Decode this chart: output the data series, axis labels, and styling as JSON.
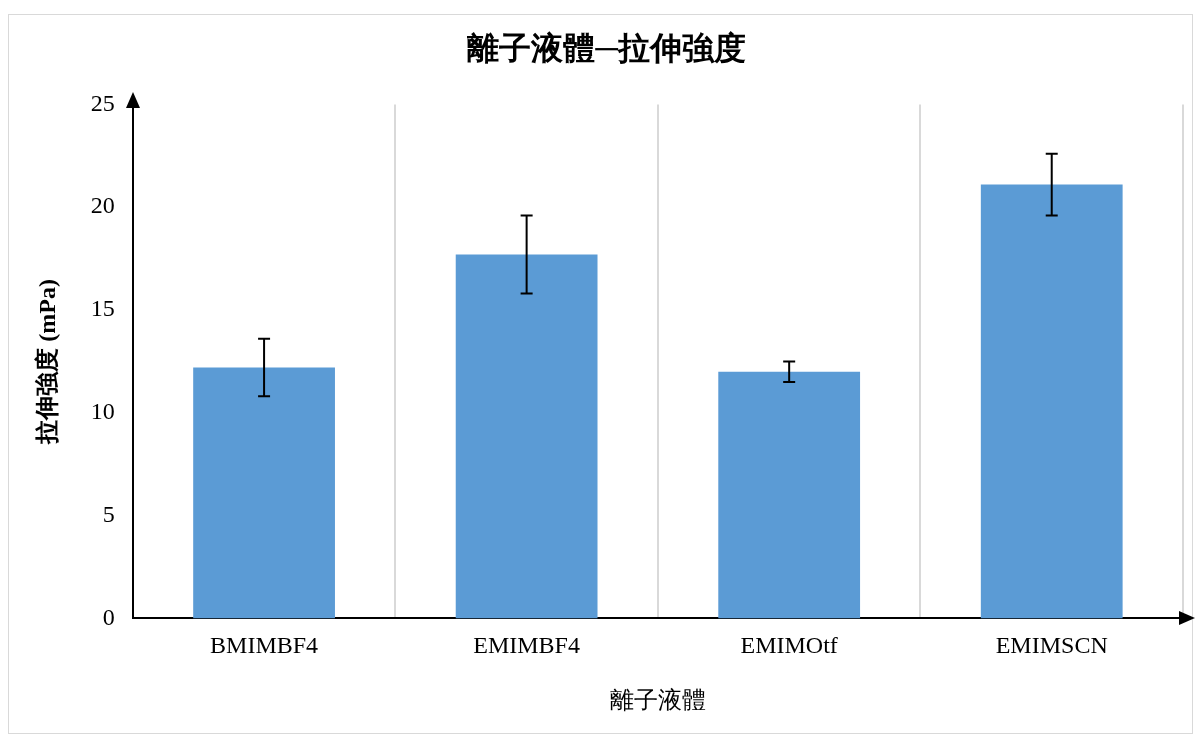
{
  "chart_data": {
    "type": "bar",
    "title": "離子液體─拉伸強度",
    "xlabel": "離子液體",
    "ylabel": "拉伸強度 (mPa)",
    "categories": [
      "BMIMBF4",
      "EMIMBF4",
      "EMIMOtf",
      "EMIMSCN"
    ],
    "values": [
      12.2,
      17.7,
      12.0,
      21.1
    ],
    "errors": [
      1.4,
      1.9,
      0.5,
      1.5
    ],
    "color": "#5b9bd5",
    "ylim": [
      0,
      25
    ],
    "yticks": [
      0,
      5,
      10,
      15,
      20,
      25
    ],
    "grid": "x"
  }
}
